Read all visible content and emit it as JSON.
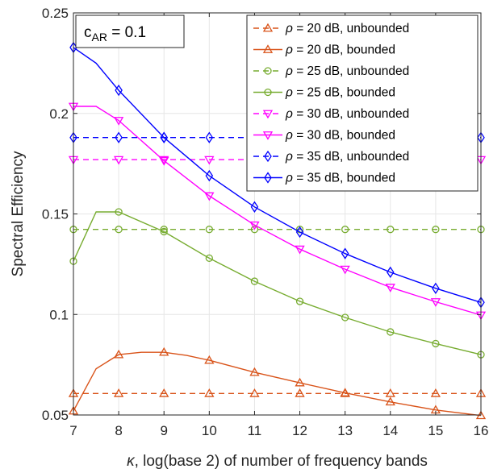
{
  "chart_data": {
    "type": "line",
    "xlabel_prefix": "κ",
    "xlabel_rest": ", log(base 2) of number of frequency bands",
    "ylabel": "Spectral Efficiency",
    "xlim": [
      7,
      16
    ],
    "ylim": [
      0.05,
      0.25
    ],
    "xticks": [
      7,
      8,
      9,
      10,
      11,
      12,
      13,
      14,
      15,
      16
    ],
    "yticks": [
      0.05,
      0.1,
      0.15,
      0.2,
      0.25
    ],
    "ytick_labels": [
      "0.05",
      "0.1",
      "0.15",
      "0.2",
      "0.25"
    ],
    "grid": true,
    "legend_position": "top-right",
    "annotation": {
      "base": "c",
      "subscript": "AR",
      "rest": " = 0.1"
    },
    "series": [
      {
        "name_symbol": "ρ",
        "name": " = 20 dB, unbounded",
        "color": "#D95319",
        "dashed": true,
        "marker": "triangle",
        "x": [
          7,
          8,
          9,
          10,
          11,
          12,
          13,
          14,
          15,
          16
        ],
        "y": [
          0.0607,
          0.0607,
          0.0607,
          0.0607,
          0.0607,
          0.0607,
          0.0607,
          0.0607,
          0.0607,
          0.0607
        ]
      },
      {
        "name_symbol": "ρ",
        "name": " = 20 dB, bounded",
        "color": "#D95319",
        "dashed": false,
        "marker": "triangle",
        "x": [
          7,
          7.5,
          8,
          8.5,
          9,
          9.5,
          10,
          11,
          12,
          13,
          14,
          15,
          16
        ],
        "y": [
          0.052,
          0.073,
          0.08,
          0.0812,
          0.0812,
          0.0796,
          0.0772,
          0.0712,
          0.066,
          0.061,
          0.0565,
          0.0525,
          0.0497
        ],
        "markers_at": [
          7,
          8,
          9,
          10,
          11,
          12,
          13,
          14,
          15,
          16
        ]
      },
      {
        "name_symbol": "ρ",
        "name": " = 25 dB, unbounded",
        "color": "#77AC30",
        "dashed": true,
        "marker": "circle",
        "x": [
          7,
          8,
          9,
          10,
          11,
          12,
          13,
          14,
          15,
          16
        ],
        "y": [
          0.1423,
          0.1423,
          0.1423,
          0.1423,
          0.1423,
          0.1423,
          0.1423,
          0.1423,
          0.1423,
          0.1423
        ]
      },
      {
        "name_symbol": "ρ",
        "name": " = 25 dB, bounded",
        "color": "#77AC30",
        "dashed": false,
        "marker": "circle",
        "x": [
          7,
          7.5,
          8,
          9,
          10,
          11,
          12,
          13,
          14,
          15,
          16
        ],
        "y": [
          0.1265,
          0.151,
          0.151,
          0.1412,
          0.128,
          0.1165,
          0.1065,
          0.0985,
          0.0913,
          0.0855,
          0.08
        ],
        "markers_at": [
          7,
          8,
          9,
          10,
          11,
          12,
          13,
          14,
          15,
          16
        ]
      },
      {
        "name_symbol": "ρ",
        "name": " = 30 dB, unbounded",
        "color": "#FF00FF",
        "dashed": true,
        "marker": "triangle-down",
        "x": [
          7,
          8,
          9,
          10,
          11,
          12,
          13,
          14,
          15,
          16
        ],
        "y": [
          0.177,
          0.177,
          0.177,
          0.177,
          0.177,
          0.177,
          0.177,
          0.177,
          0.177,
          0.177
        ]
      },
      {
        "name_symbol": "ρ",
        "name": " = 30 dB, bounded",
        "color": "#FF00FF",
        "dashed": false,
        "marker": "triangle-down",
        "x": [
          7,
          7.5,
          8,
          9,
          10,
          11,
          12,
          13,
          14,
          15,
          16
        ],
        "y": [
          0.2035,
          0.2035,
          0.1965,
          0.1765,
          0.159,
          0.1445,
          0.1325,
          0.1225,
          0.1135,
          0.1063,
          0.0997
        ],
        "markers_at": [
          7,
          8,
          9,
          10,
          11,
          12,
          13,
          14,
          15,
          16
        ]
      },
      {
        "name_symbol": "ρ",
        "name": " = 35 dB, unbounded",
        "color": "#0000FF",
        "dashed": true,
        "marker": "diamond",
        "x": [
          7,
          8,
          9,
          10,
          11,
          12,
          13,
          14,
          15,
          16
        ],
        "y": [
          0.188,
          0.188,
          0.188,
          0.188,
          0.188,
          0.188,
          0.188,
          0.188,
          0.188,
          0.188
        ]
      },
      {
        "name_symbol": "ρ",
        "name": " = 35 dB, bounded",
        "color": "#0000FF",
        "dashed": false,
        "marker": "diamond",
        "x": [
          7,
          7.5,
          8,
          9,
          10,
          11,
          12,
          13,
          14,
          15,
          16
        ],
        "y": [
          0.2328,
          0.225,
          0.2115,
          0.188,
          0.169,
          0.1535,
          0.141,
          0.1303,
          0.121,
          0.113,
          0.106
        ],
        "markers_at": [
          7,
          8,
          9,
          10,
          11,
          12,
          13,
          14,
          15,
          16
        ]
      }
    ]
  }
}
